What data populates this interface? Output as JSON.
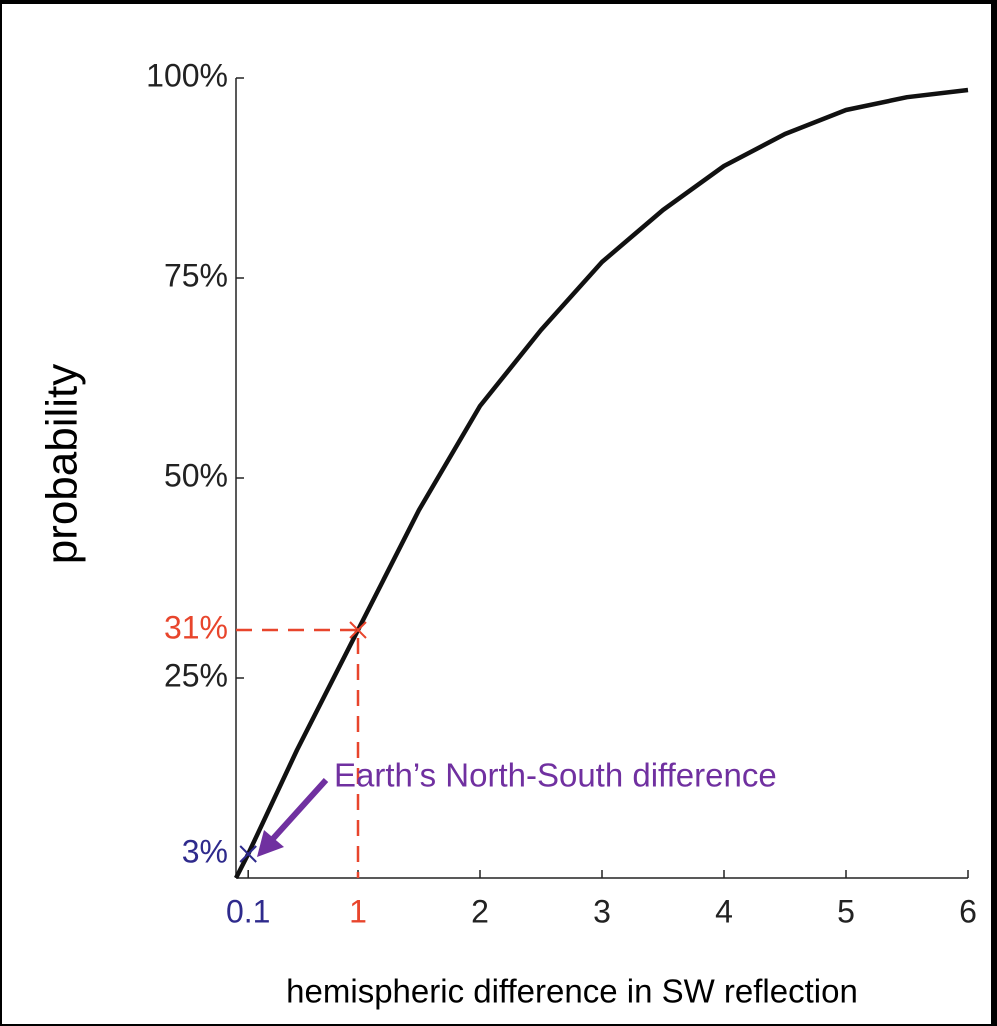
{
  "chart_data": {
    "type": "line",
    "x_label": "hemispheric difference in SW reflection",
    "y_label": "probability",
    "xlim": [
      0,
      6
    ],
    "ylim": [
      0,
      100
    ],
    "xticks": [
      0.1,
      1,
      2,
      3,
      4,
      5,
      6
    ],
    "yticks": [
      {
        "value": 25,
        "label": "25%"
      },
      {
        "value": 50,
        "label": "50%"
      },
      {
        "value": 75,
        "label": "75%"
      },
      {
        "value": 100,
        "label": "100%"
      }
    ],
    "series": [
      {
        "color": "#111111",
        "x": [
          0,
          0.1,
          0.5,
          1,
          1.5,
          2,
          2.5,
          3,
          3.5,
          4,
          4.5,
          5,
          5.5,
          6
        ],
        "values": [
          0,
          3,
          16,
          31,
          46,
          59,
          68.5,
          77,
          83.5,
          89,
          93,
          96,
          97.6,
          98.5
        ]
      }
    ],
    "highlights": [
      {
        "x": 1,
        "y": 31,
        "y_label": "31%",
        "color": "#e8452c",
        "dashed": true
      },
      {
        "x": 0.1,
        "y": 3,
        "y_label": "3%",
        "color": "#2e2a8c",
        "dashed": false
      }
    ],
    "annotation": {
      "text": "Earth’s North-South difference",
      "color": "#7030a0"
    }
  }
}
